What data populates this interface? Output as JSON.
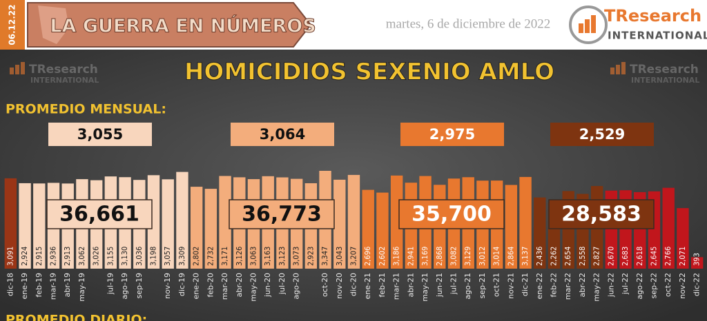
{
  "header": {
    "date_tag": "06.12.22",
    "banner": "LA GUERRA EN NÚMEROS",
    "date": "martes, 6 de diciembre de 2022",
    "brand": "TResearch",
    "brand_sub": "INTERNATIONAL"
  },
  "chart_data": {
    "type": "bar",
    "title": "HOMICIDIOS SEXENIO AMLO",
    "monthly_label": "PROMEDIO MENSUAL:",
    "daily_label": "PROMEDIO DIARIO:",
    "monthly_averages": [
      "3,055",
      "3,064",
      "2,975",
      "2,529"
    ],
    "year_totals": [
      "36,661",
      "36,773",
      "35,700",
      "28,583"
    ],
    "group_colors": [
      "#f8d6bd",
      "#f3ad7c",
      "#e8782f",
      "#7e3410"
    ],
    "categories": [
      "dic-18",
      "ene-19",
      "feb-19",
      "mar-19",
      "abr-19",
      "may-19",
      null,
      "jul-19",
      "ago-19",
      "sep-19",
      null,
      "nov-19",
      "dic-19",
      "ene-20",
      "feb-20",
      "mar-20",
      "abr-20",
      "may-20",
      "jun-20",
      "jul-20",
      "ago-20",
      null,
      "oct-20",
      "nov-20",
      "dic-20",
      "ene-21",
      "feb-21",
      "mar-21",
      "abr-21",
      "may-21",
      "jun-21",
      "jul-21",
      "ago-21",
      "sep-21",
      "oct-21",
      "nov-21",
      "dic-21",
      "ene-22",
      "feb-22",
      "mar-22",
      "abr-22",
      "may-22",
      "jun-22",
      "jul-22",
      "ago-22",
      "sep-22",
      "oct-22",
      "nov-22",
      "dic-22"
    ],
    "values": [
      3091,
      2924,
      2915,
      2936,
      2913,
      3062,
      3026,
      3155,
      3130,
      3036,
      3198,
      3057,
      3309,
      2802,
      2732,
      3171,
      3126,
      3063,
      3163,
      3123,
      3073,
      2923,
      3347,
      3043,
      3207,
      2696,
      2602,
      3186,
      2941,
      3169,
      2868,
      3082,
      3129,
      3012,
      3014,
      2864,
      3137,
      2436,
      2262,
      2654,
      2558,
      2827,
      2670,
      2683,
      2618,
      2645,
      2766,
      2071,
      393
    ],
    "value_labels": [
      "3,091",
      "2,924",
      "2,915",
      "2,936",
      "2,913",
      "3,062",
      "3,026",
      "3,155",
      "3,130",
      "3,036",
      "3,198",
      "3,057",
      "3,309",
      "2,802",
      "2,732",
      "3,171",
      "3,126",
      "3,063",
      "3,163",
      "3,123",
      "3,073",
      "2,923",
      "3,347",
      "3,043",
      "3,207",
      "2,696",
      "2,602",
      "3,186",
      "2,941",
      "3,169",
      "2,868",
      "3,082",
      "3,129",
      "3,012",
      "3,014",
      "2,864",
      "3,137",
      "2,436",
      "2,262",
      "2,654",
      "2,558",
      "2,827",
      "2,670",
      "2,683",
      "2,618",
      "2,645",
      "2,766",
      "2,071",
      "393"
    ],
    "colors": [
      "#9a3516",
      "#f8d6bd",
      "#f8d6bd",
      "#f8d6bd",
      "#f8d6bd",
      "#f8d6bd",
      "#f8d6bd",
      "#f8d6bd",
      "#f8d6bd",
      "#f8d6bd",
      "#f8d6bd",
      "#f8d6bd",
      "#f8d6bd",
      "#f3ad7c",
      "#f3ad7c",
      "#f3ad7c",
      "#f3ad7c",
      "#f3ad7c",
      "#f3ad7c",
      "#f3ad7c",
      "#f3ad7c",
      "#f3ad7c",
      "#f3ad7c",
      "#f3ad7c",
      "#f3ad7c",
      "#e8782f",
      "#e8782f",
      "#e8782f",
      "#e8782f",
      "#e8782f",
      "#e8782f",
      "#e8782f",
      "#e8782f",
      "#e8782f",
      "#e8782f",
      "#e8782f",
      "#e8782f",
      "#7e3410",
      "#7e3410",
      "#7e3410",
      "#7e3410",
      "#7e3410",
      "#c1161c",
      "#c1161c",
      "#c1161c",
      "#c1161c",
      "#c1161c",
      "#c1161c",
      "#c1161c"
    ],
    "ylim": [
      0,
      3500
    ]
  }
}
